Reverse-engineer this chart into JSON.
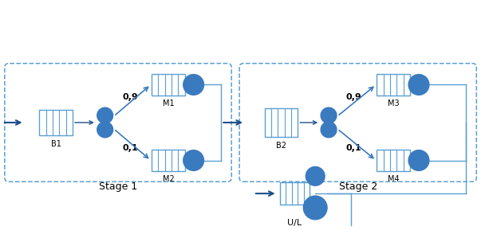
{
  "blue": "#3a7abf",
  "blue_dark": "#1c4f8a",
  "blue_light": "#5a9fd4",
  "dash_color": "#5a9fd4",
  "arrow_color": "#1c4f8a",
  "line_color": "#5a9fd4",
  "stage1_label": "Stage 1",
  "stage2_label": "Stage 2",
  "ul_label": "U/L",
  "prob_09": "0,9",
  "prob_01": "0,1",
  "b1_label": "B1",
  "b2_label": "B2",
  "m1_label": "M1",
  "m2_label": "M2",
  "m3_label": "M3",
  "m4_label": "M4"
}
